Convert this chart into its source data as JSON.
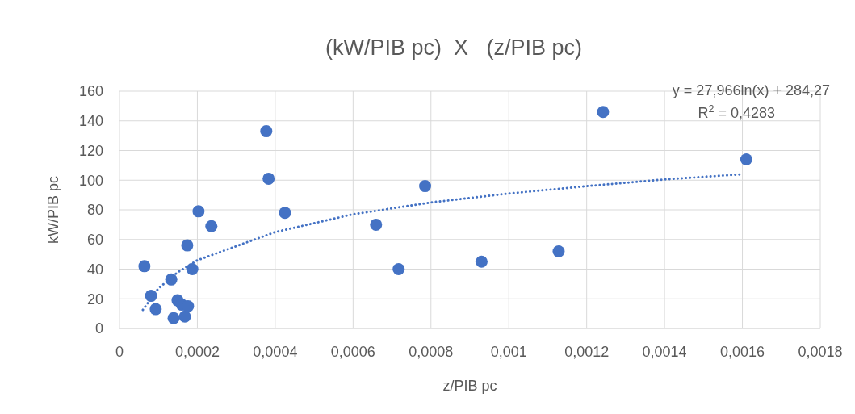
{
  "chart_data": {
    "type": "scatter",
    "title": "(kW/PIB pc)  X   (z/PIB pc)",
    "xlabel": "z/PIB pc",
    "ylabel": "kW/PIB pc",
    "xlim": [
      0,
      0.0018
    ],
    "xticks": [
      {
        "value": 0,
        "label": "0"
      },
      {
        "value": 0.0002,
        "label": "0,0002"
      },
      {
        "value": 0.0004,
        "label": "0,0004"
      },
      {
        "value": 0.0006,
        "label": "0,0006"
      },
      {
        "value": 0.0008,
        "label": "0,0008"
      },
      {
        "value": 0.001,
        "label": "0,001"
      },
      {
        "value": 0.0012,
        "label": "0,0012"
      },
      {
        "value": 0.0014,
        "label": "0,0014"
      },
      {
        "value": 0.0016,
        "label": "0,0016"
      },
      {
        "value": 0.0018,
        "label": "0,0018"
      }
    ],
    "ylim": [
      0,
      160
    ],
    "yticks": [
      0,
      20,
      40,
      60,
      80,
      100,
      120,
      140,
      160
    ],
    "grid": true,
    "series": [
      {
        "color": "#4472c4",
        "marker": "circle",
        "x": [
          6.4e-05,
          8.1e-05,
          9.3e-05,
          0.000133,
          0.000139,
          0.000149,
          0.00016,
          0.000168,
          0.000174,
          0.000176,
          0.000187,
          0.000203,
          0.000236,
          0.000377,
          0.000383,
          0.000425,
          0.000659,
          0.000717,
          0.000785,
          0.00093,
          0.001128,
          0.001242,
          0.00161
        ],
        "values": [
          42,
          22,
          13,
          33,
          7,
          19,
          16,
          8,
          56,
          15,
          40,
          79,
          69,
          133,
          101,
          78,
          70,
          40,
          96,
          45,
          52,
          146,
          114
        ]
      },
      {
        "type": "line",
        "color": "#4472c4",
        "line_style": "dotted",
        "x": [
          6e-05,
          0.0001,
          0.00015,
          0.0002,
          0.0004,
          0.0006,
          0.0008,
          0.001,
          0.0012,
          0.0014,
          0.0016
        ],
        "values": [
          12.5,
          27,
          38,
          46,
          65,
          77,
          85,
          91,
          96,
          100.5,
          104
        ]
      }
    ],
    "annotations": [
      {
        "text": "y = 27,966ln(x) + 284,27"
      },
      {
        "text": "R$^{2}$ = 0,4283"
      }
    ]
  }
}
